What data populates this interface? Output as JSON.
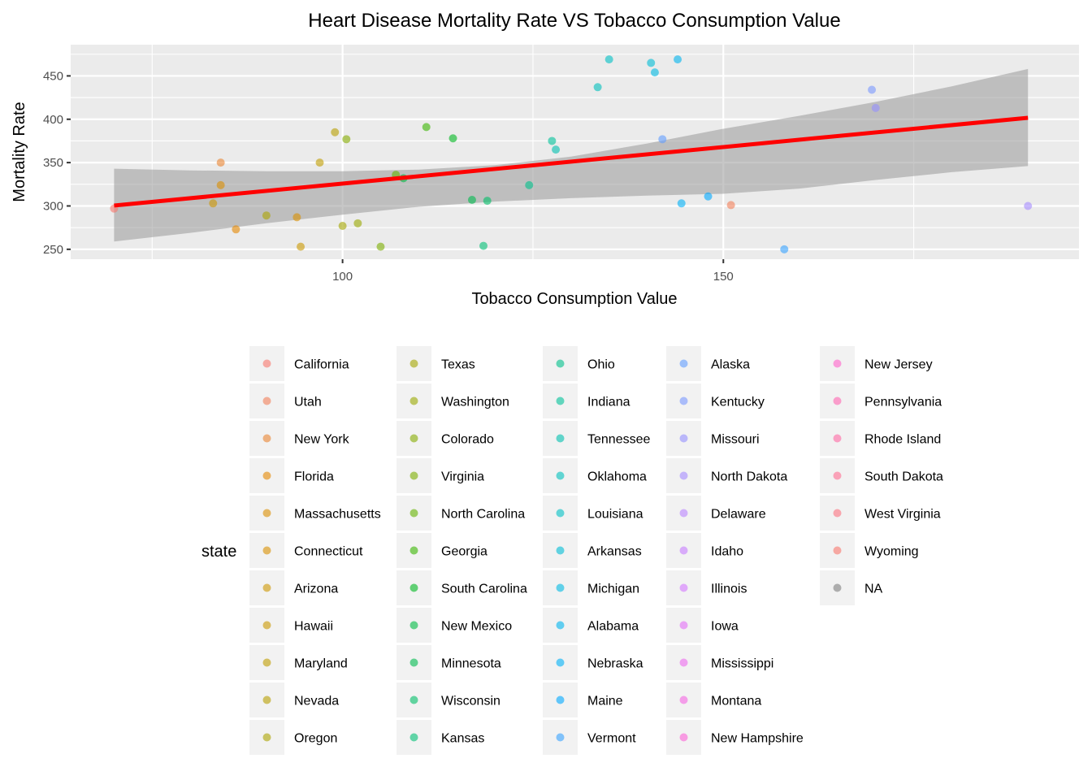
{
  "chart_data": {
    "type": "scatter",
    "title": "Heart Disease Mortality Rate VS Tobacco Consumption Value",
    "xlabel": "Tobacco Consumption Value",
    "ylabel": "Mortality Rate",
    "xlim": [
      64.3,
      196.7
    ],
    "ylim": [
      238.6,
      486.0
    ],
    "x_ticks": [
      100,
      150
    ],
    "y_ticks": [
      250,
      300,
      350,
      400,
      450
    ],
    "grid": true,
    "legend": {
      "title": "state",
      "placement": "bottom"
    },
    "trend": {
      "method": "linear",
      "color": "#ff0000",
      "x_range": [
        70,
        190
      ],
      "y_range": [
        300.5,
        401.7
      ],
      "ribbon": {
        "x": [
          70,
          80,
          90,
          100,
          110,
          120,
          130,
          140,
          150,
          160,
          170,
          180,
          190
        ],
        "upper": [
          343,
          341,
          340,
          340,
          342,
          347,
          357,
          372,
          389,
          404,
          420,
          438,
          458
        ],
        "lower": [
          259,
          269,
          280,
          290,
          299,
          305,
          309,
          312,
          314,
          320,
          330,
          339,
          346
        ]
      }
    },
    "series": [
      {
        "name": "California",
        "color": "#F8766D",
        "x": 70.0,
        "y": 297
      },
      {
        "name": "Utah",
        "color": "#F17F59",
        "x": 151.0,
        "y": 301
      },
      {
        "name": "New York",
        "color": "#EA8331",
        "x": 84.0,
        "y": 350
      },
      {
        "name": "Florida",
        "color": "#E58700",
        "x": 86.0,
        "y": 273
      },
      {
        "name": "Massachusetts",
        "color": "#DB8E00",
        "x": 84.0,
        "y": 324
      },
      {
        "name": "Connecticut",
        "color": "#D89000",
        "x": 94.0,
        "y": 287
      },
      {
        "name": "Arizona",
        "color": "#CD9600",
        "x": 83.0,
        "y": 303
      },
      {
        "name": "Hawaii",
        "color": "#C99800",
        "x": 94.5,
        "y": 253
      },
      {
        "name": "Maryland",
        "color": "#BF9C00",
        "x": 97.0,
        "y": 350
      },
      {
        "name": "Nevada",
        "color": "#B79F00",
        "x": 99.0,
        "y": 385
      },
      {
        "name": "Oregon",
        "color": "#ABA300",
        "x": 90.0,
        "y": 289
      },
      {
        "name": "Texas",
        "color": "#A3A500",
        "x": 100.0,
        "y": 277
      },
      {
        "name": "Washington",
        "color": "#9AA800",
        "x": 102.0,
        "y": 280
      },
      {
        "name": "Colorado",
        "color": "#86AC00",
        "x": 100.5,
        "y": 377
      },
      {
        "name": "Virginia",
        "color": "#7CAE00",
        "x": 105.0,
        "y": 253
      },
      {
        "name": "North Carolina",
        "color": "#64B200",
        "x": 107.0,
        "y": 336
      },
      {
        "name": "Georgia",
        "color": "#39B600",
        "x": 111.0,
        "y": 391
      },
      {
        "name": "South Carolina",
        "color": "#00B81F",
        "x": 114.5,
        "y": 378
      },
      {
        "name": "New Mexico",
        "color": "#00BA42",
        "x": 108.0,
        "y": 332
      },
      {
        "name": "Minnesota",
        "color": "#00BB4E",
        "x": 117.0,
        "y": 307
      },
      {
        "name": "Wisconsin",
        "color": "#00BE67",
        "x": 119.0,
        "y": 306
      },
      {
        "name": "Kansas",
        "color": "#00BF74",
        "x": 118.5,
        "y": 254
      },
      {
        "name": "Ohio",
        "color": "#00C08B",
        "x": 124.5,
        "y": 324
      },
      {
        "name": "Indiana",
        "color": "#00C19A",
        "x": 127.5,
        "y": 375
      },
      {
        "name": "Tennessee",
        "color": "#00C0AF",
        "x": 128.0,
        "y": 365
      },
      {
        "name": "Oklahoma",
        "color": "#00BFBC",
        "x": 133.5,
        "y": 437
      },
      {
        "name": "Louisiana",
        "color": "#00BFC4",
        "x": 135.0,
        "y": 469
      },
      {
        "name": "Arkansas",
        "color": "#00BCD6",
        "x": 140.5,
        "y": 465
      },
      {
        "name": "Michigan",
        "color": "#00B9E3",
        "x": 141.0,
        "y": 454
      },
      {
        "name": "Alabama",
        "color": "#00B4EF",
        "x": 144.0,
        "y": 469
      },
      {
        "name": "Nebraska",
        "color": "#00B0F6",
        "x": 144.5,
        "y": 303
      },
      {
        "name": "Maine",
        "color": "#00A9FF",
        "x": 148.0,
        "y": 311
      },
      {
        "name": "Vermont",
        "color": "#35A2FF",
        "x": 158.0,
        "y": 250
      },
      {
        "name": "Alaska",
        "color": "#619CFF",
        "x": 142.0,
        "y": 377
      },
      {
        "name": "Kentucky",
        "color": "#7997FF",
        "x": 169.5,
        "y": 434
      },
      {
        "name": "Missouri",
        "color": "#9590FF",
        "x": 170.0,
        "y": 413
      },
      {
        "name": "North Dakota",
        "color": "#A58AFF",
        "x": 190.0,
        "y": 300
      },
      {
        "name": "Delaware",
        "color": "#B983FF",
        "x": null,
        "y": null
      },
      {
        "name": "Idaho",
        "color": "#C77CFF",
        "x": null,
        "y": null
      },
      {
        "name": "Illinois",
        "color": "#D376FF",
        "x": null,
        "y": null
      },
      {
        "name": "Iowa",
        "color": "#E36EF6",
        "x": null,
        "y": null
      },
      {
        "name": "Mississippi",
        "color": "#EC69EF",
        "x": null,
        "y": null
      },
      {
        "name": "Montana",
        "color": "#F564E3",
        "x": null,
        "y": null
      },
      {
        "name": "New Hampshire",
        "color": "#FB61D7",
        "x": null,
        "y": null
      },
      {
        "name": "New Jersey",
        "color": "#FF61C9",
        "x": null,
        "y": null
      },
      {
        "name": "Pennsylvania",
        "color": "#FF64B0",
        "x": null,
        "y": null
      },
      {
        "name": "Rhode Island",
        "color": "#FF67A4",
        "x": null,
        "y": null
      },
      {
        "name": "South Dakota",
        "color": "#FF6C91",
        "x": null,
        "y": null
      },
      {
        "name": "West Virginia",
        "color": "#FC717F",
        "x": null,
        "y": null
      },
      {
        "name": "Wyoming",
        "color": "#F8766D",
        "x": null,
        "y": null
      },
      {
        "name": "NA",
        "color": "#7F7F7F",
        "x": null,
        "y": null
      }
    ]
  }
}
